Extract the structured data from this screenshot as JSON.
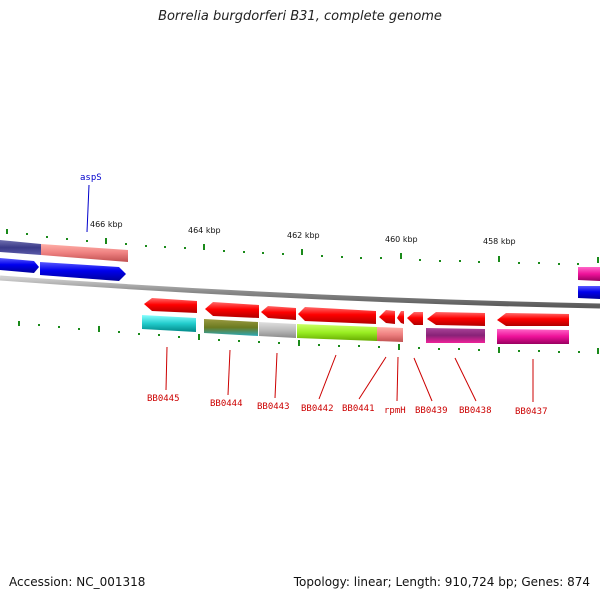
{
  "title": "Borrelia burgdorferi B31, complete genome",
  "footer": {
    "accession": "Accession: NC_001318",
    "summary": "Topology: linear; Length: 910,724 bp; Genes: 874"
  },
  "kbp_ticks": [
    "466 kbp",
    "464 kbp",
    "462 kbp",
    "460 kbp",
    "458 kbp"
  ],
  "gene_labels": [
    {
      "id": "aspS",
      "text": "aspS",
      "color": "#0000cc"
    },
    {
      "id": "BB0445",
      "text": "BB0445",
      "color": "#cc0000"
    },
    {
      "id": "BB0444",
      "text": "BB0444",
      "color": "#cc0000"
    },
    {
      "id": "BB0443",
      "text": "BB0443",
      "color": "#cc0000"
    },
    {
      "id": "BB0442",
      "text": "BB0442",
      "color": "#cc0000"
    },
    {
      "id": "BB0441",
      "text": "BB0441",
      "color": "#cc0000"
    },
    {
      "id": "rpmH",
      "text": "rpmH",
      "color": "#cc0000"
    },
    {
      "id": "BB0439",
      "text": "BB0439",
      "color": "#cc0000"
    },
    {
      "id": "BB0438",
      "text": "BB0438",
      "color": "#cc0000"
    },
    {
      "id": "BB0437",
      "text": "BB0437",
      "color": "#cc0000"
    }
  ],
  "colors": {
    "forward_strand": "#0000e6",
    "reverse_strand": "#e60000",
    "tick": "#1a8a1a",
    "backbone": "#888888"
  }
}
